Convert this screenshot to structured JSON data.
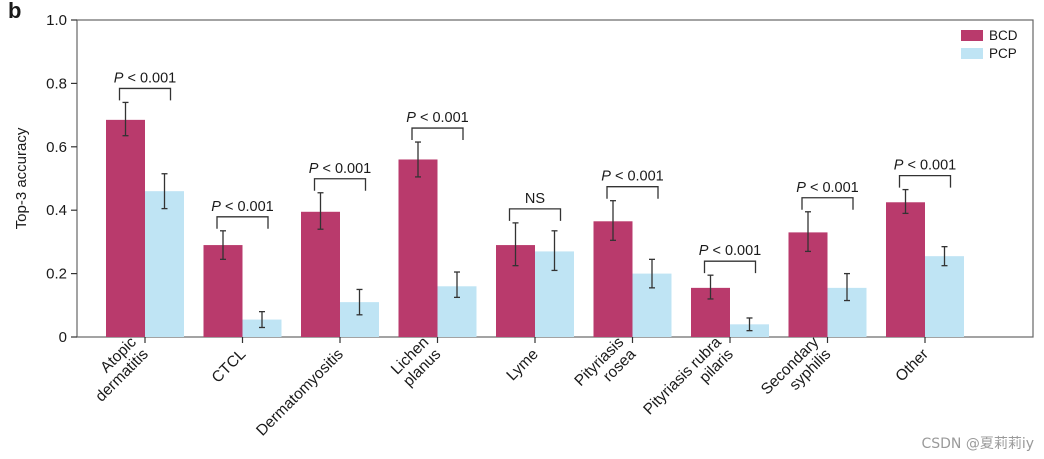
{
  "panel_label": "b",
  "watermark": "CSDN @夏莉莉iy",
  "chart_data": {
    "type": "bar",
    "title": "",
    "xlabel": "",
    "ylabel": "Top-3 accuracy",
    "ylim": [
      0,
      1.0
    ],
    "yticks": [
      0,
      0.2,
      0.4,
      0.6,
      0.8,
      1.0
    ],
    "ytick_labels": [
      "0",
      "0.2",
      "0.4",
      "0.6",
      "0.8",
      "1.0"
    ],
    "legend_position": "top-right",
    "categories": [
      [
        "Atopic",
        "dermatitis"
      ],
      [
        "CTCL"
      ],
      [
        "Dermatomyositis"
      ],
      [
        "Lichen",
        "planus"
      ],
      [
        "Lyme"
      ],
      [
        "Pityriasis",
        "rosea"
      ],
      [
        "Pityriasis rubra",
        "pilaris"
      ],
      [
        "Secondary",
        "syphilis"
      ],
      [
        "Other"
      ]
    ],
    "series": [
      {
        "name": "BCD",
        "color": "#b93a6c",
        "values": [
          0.685,
          0.29,
          0.395,
          0.56,
          0.29,
          0.365,
          0.155,
          0.33,
          0.425
        ],
        "error_low": [
          0.635,
          0.245,
          0.34,
          0.505,
          0.225,
          0.305,
          0.12,
          0.27,
          0.39
        ],
        "error_high": [
          0.74,
          0.335,
          0.455,
          0.615,
          0.36,
          0.43,
          0.195,
          0.395,
          0.465
        ]
      },
      {
        "name": "PCP",
        "color": "#bfe4f4",
        "values": [
          0.46,
          0.055,
          0.11,
          0.16,
          0.27,
          0.2,
          0.04,
          0.155,
          0.255
        ],
        "error_low": [
          0.405,
          0.03,
          0.07,
          0.125,
          0.21,
          0.155,
          0.02,
          0.115,
          0.225
        ],
        "error_high": [
          0.515,
          0.08,
          0.15,
          0.205,
          0.335,
          0.245,
          0.06,
          0.2,
          0.285
        ]
      }
    ],
    "annotations": [
      {
        "category": 0,
        "text": "P < 0.001",
        "italic_p": true
      },
      {
        "category": 1,
        "text": "P < 0.001",
        "italic_p": true
      },
      {
        "category": 2,
        "text": "P < 0.001",
        "italic_p": true
      },
      {
        "category": 3,
        "text": "P < 0.001",
        "italic_p": true
      },
      {
        "category": 4,
        "text": "NS",
        "italic_p": false
      },
      {
        "category": 5,
        "text": "P < 0.001",
        "italic_p": true
      },
      {
        "category": 6,
        "text": "P < 0.001",
        "italic_p": true
      },
      {
        "category": 7,
        "text": "P < 0.001",
        "italic_p": true
      },
      {
        "category": 8,
        "text": "P < 0.001",
        "italic_p": true
      }
    ]
  }
}
